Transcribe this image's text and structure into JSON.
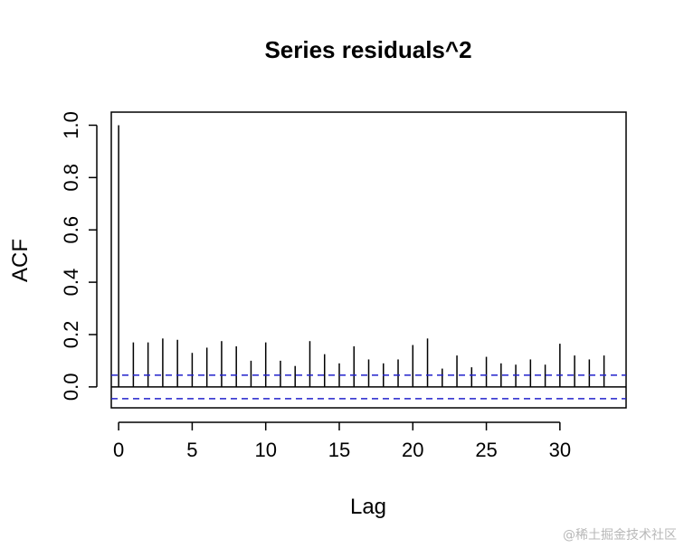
{
  "chart_data": {
    "type": "bar",
    "title": "Series  residuals^2",
    "xlabel": "Lag",
    "ylabel": "ACF",
    "xlim": [
      -0.5,
      34.5
    ],
    "ylim": [
      -0.08,
      1.05
    ],
    "x_ticks": [
      0,
      5,
      10,
      15,
      20,
      25,
      30
    ],
    "x_tick_labels": [
      "0",
      "5",
      "10",
      "15",
      "20",
      "25",
      "30"
    ],
    "y_ticks": [
      0.0,
      0.2,
      0.4,
      0.6,
      0.8,
      1.0
    ],
    "y_tick_labels": [
      "0.0",
      "0.2",
      "0.4",
      "0.6",
      "0.8",
      "1.0"
    ],
    "lags": [
      0,
      1,
      2,
      3,
      4,
      5,
      6,
      7,
      8,
      9,
      10,
      11,
      12,
      13,
      14,
      15,
      16,
      17,
      18,
      19,
      20,
      21,
      22,
      23,
      24,
      25,
      26,
      27,
      28,
      29,
      30,
      31,
      32,
      33
    ],
    "values": [
      1.0,
      0.17,
      0.17,
      0.185,
      0.18,
      0.13,
      0.15,
      0.175,
      0.155,
      0.1,
      0.17,
      0.1,
      0.08,
      0.175,
      0.125,
      0.09,
      0.155,
      0.105,
      0.09,
      0.105,
      0.16,
      0.185,
      0.07,
      0.12,
      0.075,
      0.115,
      0.09,
      0.085,
      0.105,
      0.085,
      0.165,
      0.12,
      0.105,
      0.12
    ],
    "confidence_bound": 0.045,
    "bar_color": "#000000",
    "bound_color": "#2222cc",
    "grid": false,
    "watermark": "@稀土掘金技术社区"
  }
}
